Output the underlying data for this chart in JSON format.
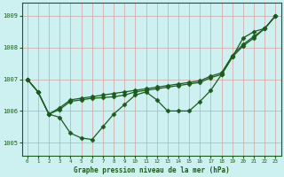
{
  "title": "Graphe pression niveau de la mer (hPa)",
  "bg_color": "#cdf0f0",
  "grid_color_major": "#d8a0a0",
  "line_color": "#1a5c1a",
  "ylim": [
    1004.6,
    1009.4
  ],
  "xlim": [
    -0.5,
    23.5
  ],
  "yticks": [
    1005,
    1006,
    1007,
    1008,
    1009
  ],
  "xticks": [
    0,
    1,
    2,
    3,
    4,
    5,
    6,
    7,
    8,
    9,
    10,
    11,
    12,
    13,
    14,
    15,
    16,
    17,
    18,
    19,
    20,
    21,
    22,
    23
  ],
  "series1": [
    1007.0,
    1006.6,
    1005.9,
    1005.8,
    1005.3,
    1005.15,
    1005.1,
    1005.5,
    1005.9,
    1006.2,
    1006.5,
    1006.6,
    1006.35,
    1006.0,
    1006.0,
    1006.0,
    1006.3,
    1006.65,
    1007.15,
    1007.7,
    1008.3,
    1008.5,
    1008.6,
    1009.0
  ],
  "series2": [
    1007.0,
    1006.6,
    1005.9,
    1006.05,
    1006.3,
    1006.35,
    1006.4,
    1006.42,
    1006.45,
    1006.5,
    1006.6,
    1006.65,
    1006.7,
    1006.75,
    1006.8,
    1006.85,
    1006.9,
    1007.05,
    1007.15,
    1007.7,
    1008.05,
    1008.3,
    1008.6,
    1009.0
  ],
  "series3": [
    1007.0,
    1006.6,
    1005.9,
    1006.1,
    1006.35,
    1006.4,
    1006.45,
    1006.5,
    1006.55,
    1006.6,
    1006.65,
    1006.7,
    1006.75,
    1006.8,
    1006.85,
    1006.9,
    1006.95,
    1007.1,
    1007.2,
    1007.75,
    1008.1,
    1008.35,
    1008.6,
    1009.0
  ],
  "marker": "D",
  "markersize": 2.5,
  "linewidth": 0.9
}
